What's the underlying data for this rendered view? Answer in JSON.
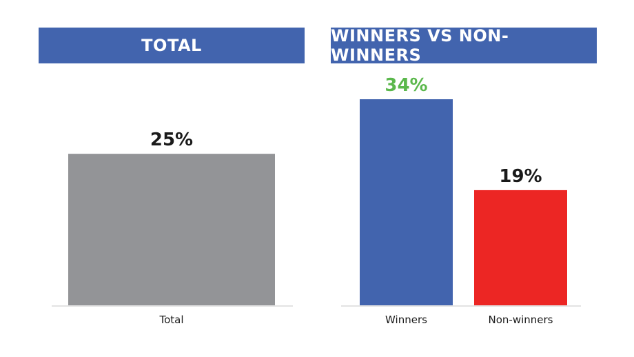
{
  "colors": {
    "banner": "#4264ae",
    "total_bar": "#939497",
    "winners_bar": "#4264ae",
    "nonwinners_bar": "#ec2624",
    "label_default": "#1a1a1a",
    "label_highlight": "#5bb84c",
    "baseline": "#e3e3e3"
  },
  "chart_data": [
    {
      "type": "bar",
      "title": "TOTAL",
      "categories": [
        "Total"
      ],
      "values": [
        25
      ],
      "data_labels": [
        "25%"
      ],
      "ylim": [
        0,
        34
      ]
    },
    {
      "type": "bar",
      "title": "WINNERS VS NON-WINNERS",
      "categories": [
        "Winners",
        "Non-winners"
      ],
      "values": [
        34,
        19
      ],
      "data_labels": [
        "34%",
        "19%"
      ],
      "ylim": [
        0,
        34
      ]
    }
  ]
}
